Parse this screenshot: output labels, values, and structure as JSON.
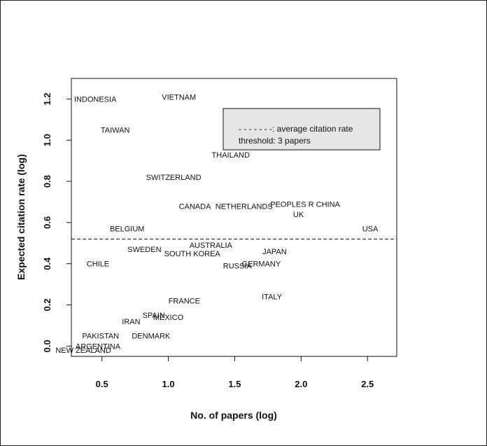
{
  "chart_data": {
    "type": "scatter",
    "title": "",
    "xlabel": "No. of papers (log)",
    "ylabel": "Expected citation rate (log)",
    "xlim": [
      0.27,
      2.72
    ],
    "ylim": [
      -0.05,
      1.3
    ],
    "x_ticks": [
      "0.5",
      "1.0",
      "1.5",
      "2.0",
      "2.5"
    ],
    "y_ticks": [
      "0.0",
      "0.2",
      "0.4",
      "0.6",
      "0.8",
      "1.0",
      "1.2"
    ],
    "grid": false,
    "average_line": {
      "y": 0.52,
      "style": "dashed"
    },
    "legend": {
      "position": "top-right",
      "line_label": "- - - - - - -:  average citation rate",
      "threshold_label": "threshold:  3 papers"
    },
    "points": [
      {
        "label": "INDONESIA",
        "x": 0.45,
        "y": 1.2
      },
      {
        "label": "VIETNAM",
        "x": 1.08,
        "y": 1.21
      },
      {
        "label": "TAIWAN",
        "x": 0.6,
        "y": 1.05
      },
      {
        "label": "THAILAND",
        "x": 1.47,
        "y": 0.93
      },
      {
        "label": "SWITZERLAND",
        "x": 1.04,
        "y": 0.82
      },
      {
        "label": "CANADA",
        "x": 1.2,
        "y": 0.68
      },
      {
        "label": "NETHERLANDS",
        "x": 1.57,
        "y": 0.68
      },
      {
        "label": "PEOPLES R CHINA",
        "x": 2.03,
        "y": 0.69
      },
      {
        "label": "UK",
        "x": 1.98,
        "y": 0.64
      },
      {
        "label": "USA",
        "x": 2.52,
        "y": 0.57
      },
      {
        "label": "BELGIUM",
        "x": 0.69,
        "y": 0.57
      },
      {
        "label": "AUSTRALIA",
        "x": 1.32,
        "y": 0.49
      },
      {
        "label": "SWEDEN",
        "x": 0.82,
        "y": 0.47
      },
      {
        "label": "SOUTH KOREA",
        "x": 1.18,
        "y": 0.45
      },
      {
        "label": "JAPAN",
        "x": 1.8,
        "y": 0.46
      },
      {
        "label": "CHILE",
        "x": 0.47,
        "y": 0.4
      },
      {
        "label": "RUSSIA",
        "x": 1.52,
        "y": 0.39
      },
      {
        "label": "GERMANY",
        "x": 1.7,
        "y": 0.4
      },
      {
        "label": "ITALY",
        "x": 1.78,
        "y": 0.24
      },
      {
        "label": "FRANCE",
        "x": 1.12,
        "y": 0.22
      },
      {
        "label": "SPAIN",
        "x": 0.89,
        "y": 0.15
      },
      {
        "label": "MEXICO",
        "x": 1.0,
        "y": 0.14
      },
      {
        "label": "IRAN",
        "x": 0.72,
        "y": 0.12
      },
      {
        "label": "PAKISTAN",
        "x": 0.49,
        "y": 0.05
      },
      {
        "label": "DENMARK",
        "x": 0.87,
        "y": 0.05
      },
      {
        "label": "ARGENTINA",
        "x": 0.47,
        "y": 0.0
      },
      {
        "label": "NEW ZEALAND",
        "x": 0.36,
        "y": -0.02
      }
    ]
  }
}
